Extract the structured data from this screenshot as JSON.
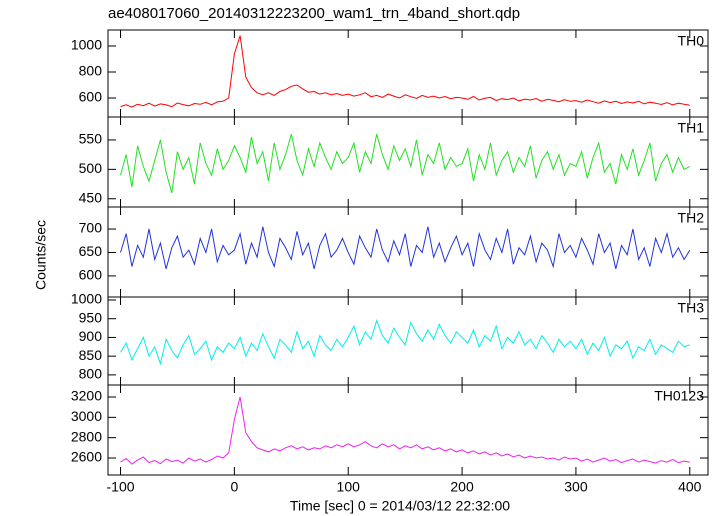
{
  "chart_data": {
    "type": "line",
    "title": "ae408017060_20140312223200_wam1_trn_4band_short.qdp",
    "x_label": "Time [sec] 0 = 2014/03/12 22:32:00",
    "y_label": "Counts/sec",
    "xlim": [
      -111,
      416
    ],
    "xticks": [
      -100,
      0,
      100,
      200,
      300,
      400
    ],
    "x": [
      -100,
      -95,
      -90,
      -85,
      -80,
      -75,
      -70,
      -65,
      -60,
      -55,
      -50,
      -45,
      -40,
      -35,
      -30,
      -25,
      -20,
      -15,
      -10,
      -5,
      0,
      5,
      10,
      15,
      20,
      25,
      30,
      35,
      40,
      45,
      50,
      55,
      60,
      65,
      70,
      75,
      80,
      85,
      90,
      95,
      100,
      105,
      110,
      115,
      120,
      125,
      130,
      135,
      140,
      145,
      150,
      155,
      160,
      165,
      170,
      175,
      180,
      185,
      190,
      195,
      200,
      205,
      210,
      215,
      220,
      225,
      230,
      235,
      240,
      245,
      250,
      255,
      260,
      265,
      270,
      275,
      280,
      285,
      290,
      295,
      300,
      305,
      310,
      315,
      320,
      325,
      330,
      335,
      340,
      345,
      350,
      355,
      360,
      365,
      370,
      375,
      380,
      385,
      390,
      395,
      400
    ],
    "series": [
      {
        "name": "TH0",
        "color": "#ff0000",
        "ylim": [
          454,
          1123
        ],
        "yticks": [
          600,
          800,
          1000
        ],
        "values": [
          535,
          548,
          530,
          552,
          541,
          560,
          538,
          555,
          547,
          533,
          562,
          549,
          540,
          558,
          552,
          566,
          548,
          570,
          575,
          600,
          940,
          1080,
          760,
          680,
          640,
          625,
          640,
          620,
          650,
          665,
          690,
          700,
          670,
          645,
          650,
          630,
          640,
          625,
          635,
          620,
          630,
          615,
          625,
          640,
          610,
          620,
          605,
          630,
          615,
          600,
          625,
          610,
          598,
          620,
          605,
          615,
          600,
          612,
          595,
          605,
          600,
          590,
          612,
          585,
          598,
          605,
          580,
          595,
          588,
          600,
          578,
          592,
          585,
          596,
          575,
          590,
          582,
          570,
          588,
          575,
          580,
          568,
          585,
          572,
          560,
          578,
          565,
          575,
          558,
          570,
          562,
          575,
          555,
          568,
          560,
          550,
          565,
          548,
          560,
          552,
          545
        ]
      },
      {
        "name": "TH1",
        "color": "#22e022",
        "ylim": [
          436,
          589
        ],
        "yticks": [
          450,
          500,
          550
        ],
        "values": [
          490,
          525,
          470,
          540,
          505,
          480,
          515,
          550,
          495,
          460,
          530,
          500,
          520,
          475,
          545,
          510,
          490,
          535,
          500,
          515,
          540,
          520,
          495,
          555,
          510,
          530,
          480,
          545,
          500,
          525,
          560,
          515,
          490,
          535,
          505,
          545,
          520,
          500,
          530,
          510,
          520,
          545,
          495,
          530,
          510,
          560,
          525,
          500,
          540,
          515,
          535,
          505,
          550,
          490,
          525,
          510,
          545,
          500,
          520,
          505,
          510,
          535,
          480,
          525,
          500,
          545,
          490,
          515,
          530,
          495,
          520,
          505,
          540,
          485,
          515,
          530,
          500,
          525,
          490,
          510,
          505,
          530,
          485,
          520,
          545,
          495,
          510,
          475,
          525,
          500,
          535,
          490,
          515,
          545,
          480,
          510,
          525,
          495,
          520,
          500,
          505
        ]
      },
      {
        "name": "TH2",
        "color": "#2233dd",
        "ylim": [
          555,
          747
        ],
        "yticks": [
          600,
          650,
          700
        ],
        "values": [
          650,
          690,
          620,
          665,
          640,
          700,
          635,
          670,
          615,
          660,
          685,
          640,
          655,
          625,
          680,
          650,
          700,
          630,
          665,
          645,
          655,
          690,
          625,
          670,
          640,
          705,
          650,
          620,
          680,
          660,
          635,
          695,
          645,
          670,
          615,
          665,
          690,
          640,
          655,
          680,
          650,
          625,
          685,
          660,
          640,
          700,
          655,
          630,
          675,
          645,
          690,
          620,
          665,
          650,
          705,
          640,
          670,
          630,
          660,
          685,
          645,
          670,
          620,
          690,
          655,
          635,
          680,
          650,
          700,
          625,
          660,
          645,
          685,
          630,
          670,
          655,
          620,
          690,
          650,
          665,
          640,
          680,
          655,
          625,
          690,
          650,
          670,
          615,
          665,
          645,
          700,
          635,
          660,
          620,
          680,
          650,
          690,
          640,
          660,
          635,
          655
        ]
      },
      {
        "name": "TH3",
        "color": "#00eeee",
        "ylim": [
          773,
          1008
        ],
        "yticks": [
          800,
          850,
          900,
          950,
          1000
        ],
        "values": [
          860,
          885,
          840,
          870,
          900,
          850,
          875,
          830,
          895,
          865,
          845,
          880,
          905,
          855,
          870,
          890,
          840,
          875,
          860,
          885,
          870,
          900,
          850,
          885,
          865,
          910,
          875,
          845,
          895,
          880,
          860,
          915,
          870,
          890,
          850,
          905,
          880,
          865,
          895,
          875,
          900,
          930,
          880,
          915,
          895,
          945,
          905,
          885,
          925,
          900,
          880,
          940,
          910,
          890,
          920,
          895,
          935,
          905,
          885,
          915,
          900,
          885,
          920,
          875,
          905,
          890,
          930,
          870,
          900,
          885,
          915,
          880,
          895,
          870,
          905,
          885,
          860,
          895,
          875,
          890,
          870,
          895,
          855,
          885,
          865,
          900,
          850,
          880,
          870,
          890,
          845,
          875,
          865,
          895,
          855,
          880,
          870,
          860,
          890,
          875,
          880
        ]
      },
      {
        "name": "TH0123",
        "color": "#ee22ee",
        "ylim": [
          2433,
          3318
        ],
        "yticks": [
          2600,
          2800,
          3000,
          3200
        ],
        "values": [
          2560,
          2595,
          2540,
          2580,
          2610,
          2555,
          2575,
          2545,
          2590,
          2565,
          2580,
          2550,
          2600,
          2570,
          2590,
          2560,
          2585,
          2620,
          2600,
          2650,
          2980,
          3200,
          2850,
          2760,
          2700,
          2680,
          2660,
          2690,
          2670,
          2700,
          2720,
          2690,
          2710,
          2680,
          2700,
          2690,
          2720,
          2700,
          2730,
          2710,
          2740,
          2710,
          2730,
          2760,
          2720,
          2700,
          2740,
          2710,
          2730,
          2690,
          2720,
          2700,
          2730,
          2690,
          2710,
          2680,
          2700,
          2670,
          2690,
          2660,
          2680,
          2650,
          2670,
          2640,
          2660,
          2630,
          2650,
          2620,
          2640,
          2610,
          2630,
          2600,
          2620,
          2600,
          2610,
          2590,
          2600,
          2580,
          2610,
          2590,
          2600,
          2570,
          2590,
          2560,
          2580,
          2600,
          2570,
          2585,
          2555,
          2575,
          2590,
          2560,
          2580,
          2565,
          2550,
          2575,
          2560,
          2585,
          2555,
          2570,
          2560
        ]
      }
    ]
  }
}
